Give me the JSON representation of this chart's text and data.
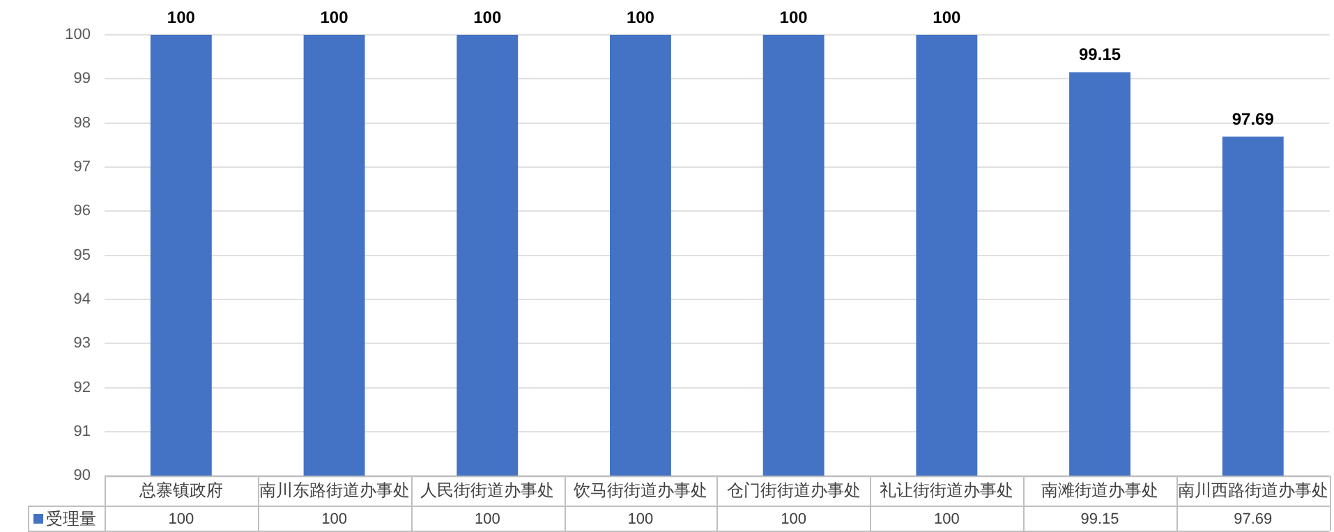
{
  "chart_data": {
    "type": "bar",
    "categories": [
      "总寨镇政府",
      "南川东路街道办事处",
      "人民街街道办事处",
      "饮马街街道办事处",
      "仓门街街道办事处",
      "礼让街街道办事处",
      "南滩街道办事处",
      "南川西路街道办事处"
    ],
    "series": [
      {
        "name": "受理量",
        "color": "#4472c4",
        "values": [
          100,
          100,
          100,
          100,
          100,
          100,
          99.15,
          97.69
        ],
        "value_labels": [
          "100",
          "100",
          "100",
          "100",
          "100",
          "100",
          "99.15",
          "97.69"
        ]
      }
    ],
    "ylim": [
      90,
      100
    ],
    "yticks": [
      90,
      91,
      92,
      93,
      94,
      95,
      96,
      97,
      98,
      99,
      100
    ],
    "grid": "y",
    "annotations": [
      "100",
      "100",
      "100",
      "100",
      "100",
      "100",
      "99.15",
      "97.69"
    ],
    "legend": "bottom left"
  }
}
